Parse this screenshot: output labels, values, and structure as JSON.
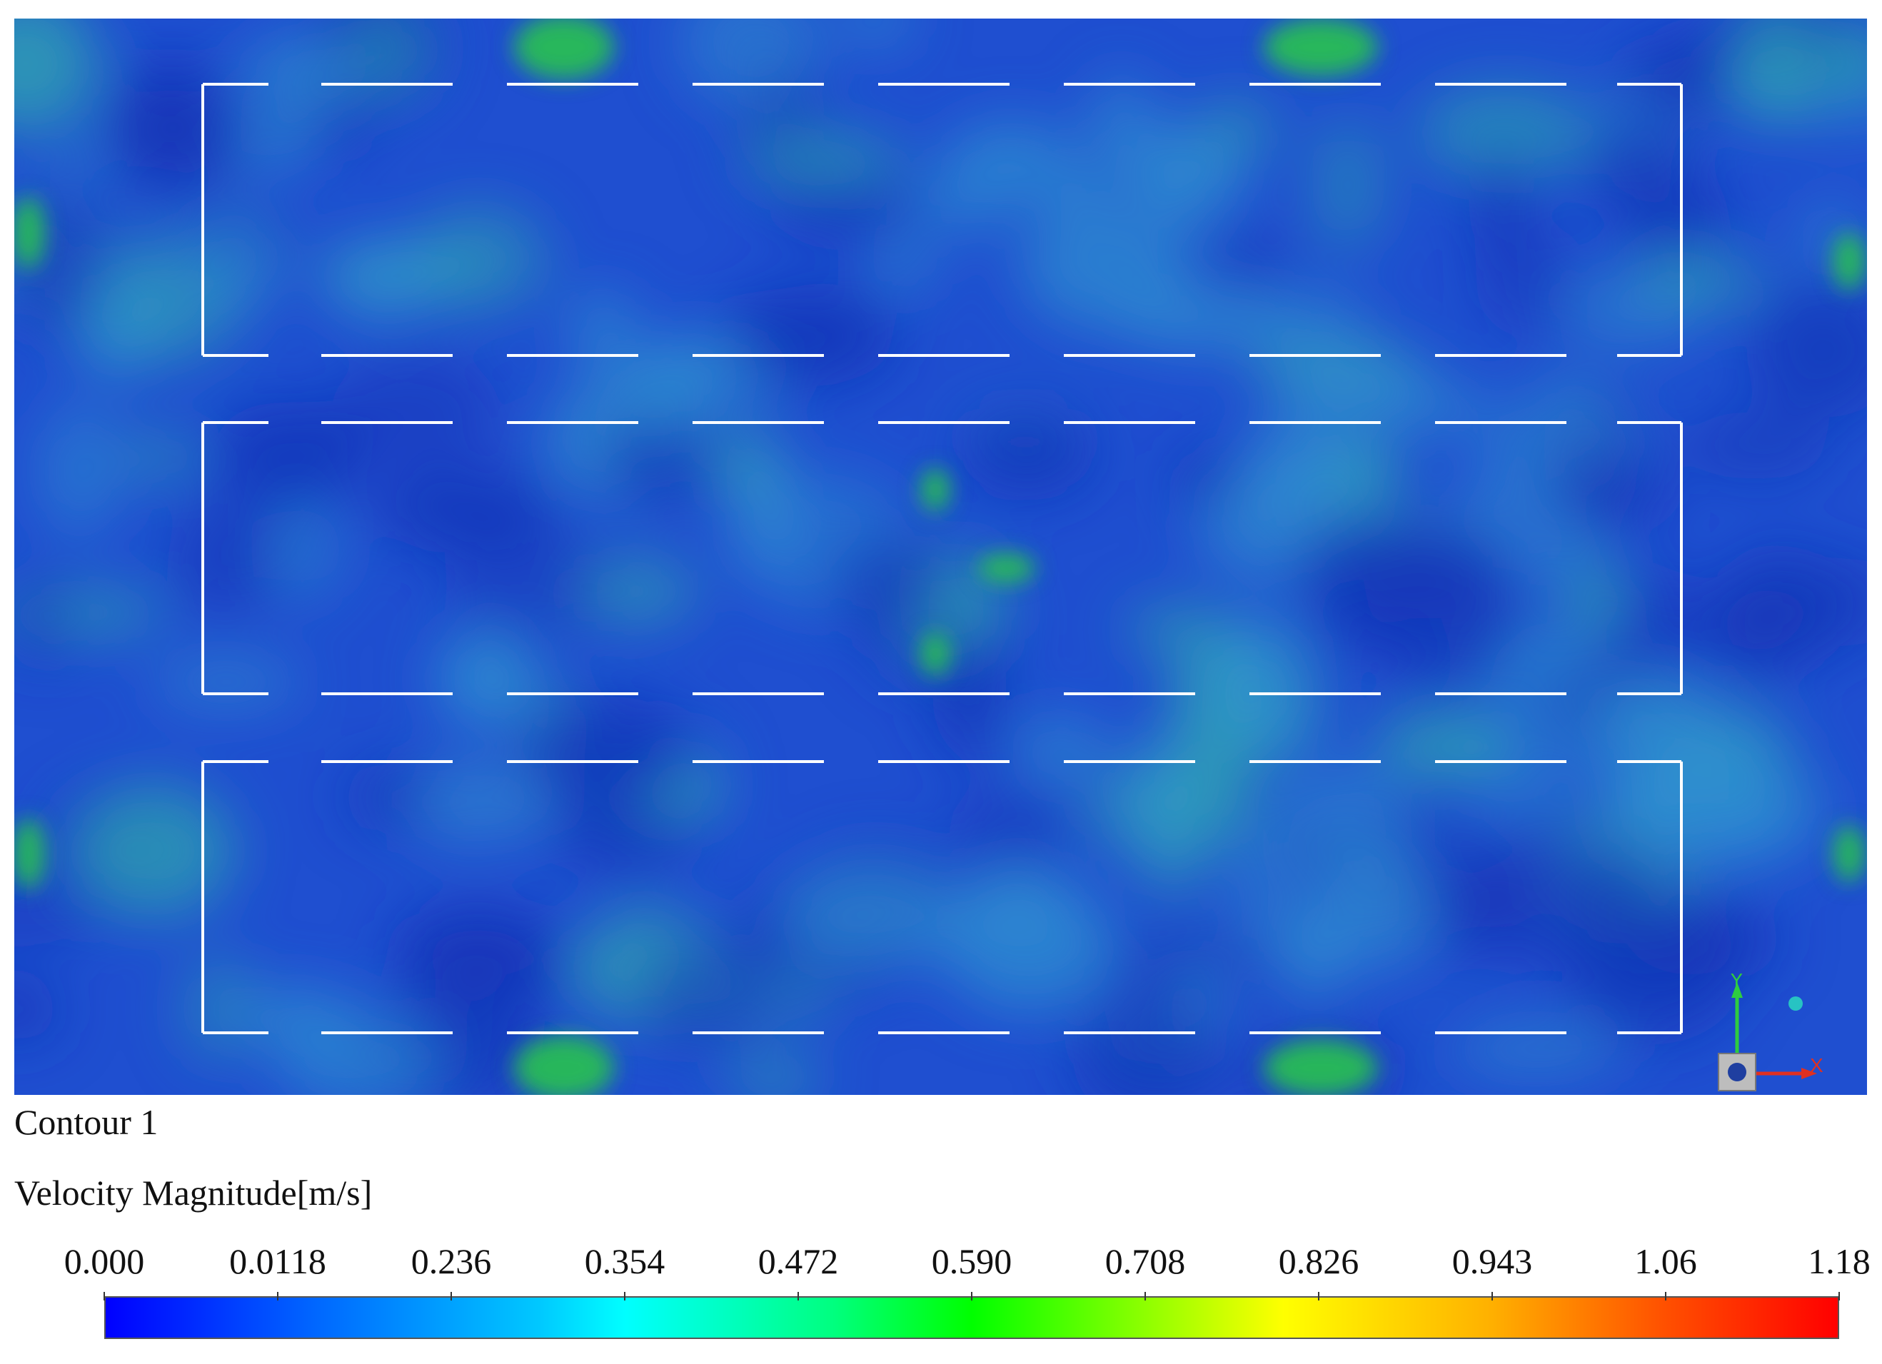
{
  "contour_title": "Contour 1",
  "variable": "Velocity Magnitude[m/s]",
  "colorbar": {
    "ticks": [
      "0.000",
      "0.0118",
      "0.236",
      "0.354",
      "0.472",
      "0.590",
      "0.708",
      "0.826",
      "0.943",
      "1.06",
      "1.18"
    ],
    "min_color": "#0000ff",
    "max_color": "#ff0000"
  },
  "axes_triad": {
    "y_label": "Y",
    "x_label": "X"
  },
  "colors": {
    "background_field": "#1f4fd0",
    "walls": "#ffffff"
  }
}
